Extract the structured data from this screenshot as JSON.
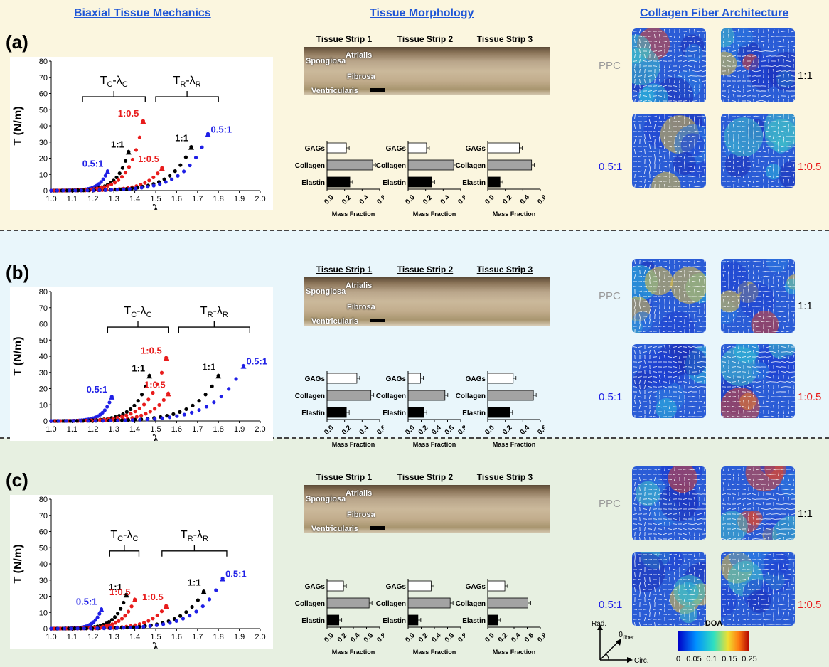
{
  "headers": {
    "mechanics": "Biaxial Tissue Mechanics",
    "morphology": "Tissue Morphology",
    "architecture": "Collagen Fiber Architecture"
  },
  "axis": {
    "x_label": "λ",
    "y_label": "T (N/m)",
    "x_ticks": [
      "1.0",
      "1.1",
      "1.2",
      "1.3",
      "1.4",
      "1.5",
      "1.6",
      "1.7",
      "1.8",
      "1.9",
      "2.0"
    ],
    "y_ticks": [
      "0",
      "10",
      "20",
      "30",
      "40",
      "50",
      "60",
      "70",
      "80"
    ]
  },
  "brackets": {
    "circ_main": "T",
    "circ_sub": "C",
    "circ_dash": "-λ",
    "circ_sub2": "C",
    "rad_main": "T",
    "rad_sub": "R",
    "rad_dash": "-λ",
    "rad_sub2": "R"
  },
  "strip_titles": [
    "Tissue Strip 1",
    "Tissue Strip 2",
    "Tissue Strip 3"
  ],
  "layer_labels": [
    "Atrialis",
    "Spongiosa",
    "Fibrosa",
    "Ventricularis"
  ],
  "components": [
    "GAGs",
    "Collagen",
    "Elastin"
  ],
  "mass_fraction_label": "Mass Fraction",
  "ratios": [
    "PPC",
    "1:1",
    "0.5:1",
    "1:0.5"
  ],
  "colors": {
    "ratio_05_1": "#1f1fe6",
    "ratio_1_1": "#000000",
    "ratio_1_05": "#e81c1c",
    "ppc": "#9a9a9a"
  },
  "legend": {
    "rad": "Rad.",
    "theta": "θ",
    "theta_sub": "fiber",
    "circ": "Circ.",
    "doa": "DOA",
    "doa_ticks": [
      "0",
      "0.05",
      "0.1",
      "0.15",
      "0.25"
    ]
  },
  "panels": [
    {
      "label": "(a)",
      "chart_data": {
        "type": "scatter",
        "xlabel": "λ",
        "ylabel": "T (N/m)",
        "xlim": [
          1.0,
          2.0
        ],
        "ylim": [
          0,
          80
        ],
        "series": [
          {
            "name": "0.5:1",
            "group": "circ",
            "end": [
              1.27,
              12
            ]
          },
          {
            "name": "1:1",
            "group": "circ",
            "end": [
              1.37,
              24
            ]
          },
          {
            "name": "1:0.5",
            "group": "circ",
            "end": [
              1.44,
              43
            ]
          },
          {
            "name": "1:0.5",
            "group": "rad",
            "end": [
              1.53,
              14
            ]
          },
          {
            "name": "1:1",
            "group": "rad",
            "end": [
              1.67,
              27
            ]
          },
          {
            "name": "0.5:1",
            "group": "rad",
            "end": [
              1.75,
              35
            ]
          }
        ],
        "bracket_circ": [
          1.15,
          1.45,
          58
        ],
        "bracket_rad": [
          1.5,
          1.8,
          58
        ]
      },
      "mass_fraction_ticks": [
        [
          "0.0",
          "0.2",
          "0.4",
          "0.6"
        ],
        [
          "0.0",
          "0.2",
          "0.4",
          "0.6"
        ],
        [
          "0.0",
          "0.2",
          "0.4",
          "0.6"
        ]
      ],
      "bars": [
        {
          "xmax": 0.6,
          "values": {
            "GAGs": 0.22,
            "Collagen": 0.52,
            "Elastin": 0.26
          }
        },
        {
          "xmax": 0.6,
          "values": {
            "GAGs": 0.21,
            "Collagen": 0.52,
            "Elastin": 0.27
          }
        },
        {
          "xmax": 0.6,
          "values": {
            "GAGs": 0.36,
            "Collagen": 0.5,
            "Elastin": 0.14
          }
        }
      ]
    },
    {
      "label": "(b)",
      "chart_data": {
        "type": "scatter",
        "xlabel": "λ",
        "ylabel": "T (N/m)",
        "xlim": [
          1.0,
          2.0
        ],
        "ylim": [
          0,
          80
        ],
        "series": [
          {
            "name": "0.5:1",
            "group": "circ",
            "end": [
              1.29,
              15
            ]
          },
          {
            "name": "1:1",
            "group": "circ",
            "end": [
              1.47,
              28
            ]
          },
          {
            "name": "1:0.5",
            "group": "circ",
            "end": [
              1.55,
              39
            ]
          },
          {
            "name": "1:0.5",
            "group": "rad",
            "end": [
              1.56,
              17
            ]
          },
          {
            "name": "1:1",
            "group": "rad",
            "end": [
              1.8,
              28
            ]
          },
          {
            "name": "0.5:1",
            "group": "rad",
            "end": [
              1.92,
              34
            ]
          }
        ],
        "bracket_circ": [
          1.27,
          1.56,
          58
        ],
        "bracket_rad": [
          1.61,
          1.95,
          58
        ]
      },
      "mass_fraction_ticks": [
        [
          "0.0",
          "0.2",
          "0.4",
          "0.6"
        ],
        [
          "0.0",
          "0.2",
          "0.4",
          "0.6",
          "0.8"
        ],
        [
          "0.0",
          "0.2",
          "0.4",
          "0.6"
        ]
      ],
      "bars": [
        {
          "xmax": 0.6,
          "values": {
            "GAGs": 0.34,
            "Collagen": 0.5,
            "Elastin": 0.22
          }
        },
        {
          "xmax": 0.8,
          "values": {
            "GAGs": 0.19,
            "Collagen": 0.56,
            "Elastin": 0.24
          }
        },
        {
          "xmax": 0.6,
          "values": {
            "GAGs": 0.29,
            "Collagen": 0.52,
            "Elastin": 0.25
          }
        }
      ]
    },
    {
      "label": "(c)",
      "chart_data": {
        "type": "scatter",
        "xlabel": "λ",
        "ylabel": "T (N/m)",
        "xlim": [
          1.0,
          2.0
        ],
        "ylim": [
          0,
          80
        ],
        "series": [
          {
            "name": "0.5:1",
            "group": "circ",
            "end": [
              1.24,
              12
            ]
          },
          {
            "name": "1:1",
            "group": "circ",
            "end": [
              1.36,
              21
            ]
          },
          {
            "name": "1:0.5",
            "group": "circ",
            "end": [
              1.4,
              18
            ]
          },
          {
            "name": "1:0.5",
            "group": "rad",
            "end": [
              1.55,
              14
            ]
          },
          {
            "name": "1:1",
            "group": "rad",
            "end": [
              1.73,
              23
            ]
          },
          {
            "name": "0.5:1",
            "group": "rad",
            "end": [
              1.82,
              31
            ]
          }
        ],
        "bracket_circ": [
          1.28,
          1.42,
          48
        ],
        "bracket_rad": [
          1.53,
          1.84,
          48
        ]
      },
      "mass_fraction_ticks": [
        [
          "0.0",
          "0.2",
          "0.4",
          "0.6",
          "0.8"
        ],
        [
          "0.0",
          "0.2",
          "0.4",
          "0.6",
          "0.8"
        ],
        [
          "0.0",
          "0.2",
          "0.4",
          "0.6",
          "0.8"
        ]
      ],
      "bars": [
        {
          "xmax": 0.8,
          "values": {
            "GAGs": 0.25,
            "Collagen": 0.64,
            "Elastin": 0.18
          }
        },
        {
          "xmax": 0.8,
          "values": {
            "GAGs": 0.35,
            "Collagen": 0.64,
            "Elastin": 0.15
          }
        },
        {
          "xmax": 0.8,
          "values": {
            "GAGs": 0.26,
            "Collagen": 0.61,
            "Elastin": 0.15
          }
        }
      ]
    }
  ]
}
